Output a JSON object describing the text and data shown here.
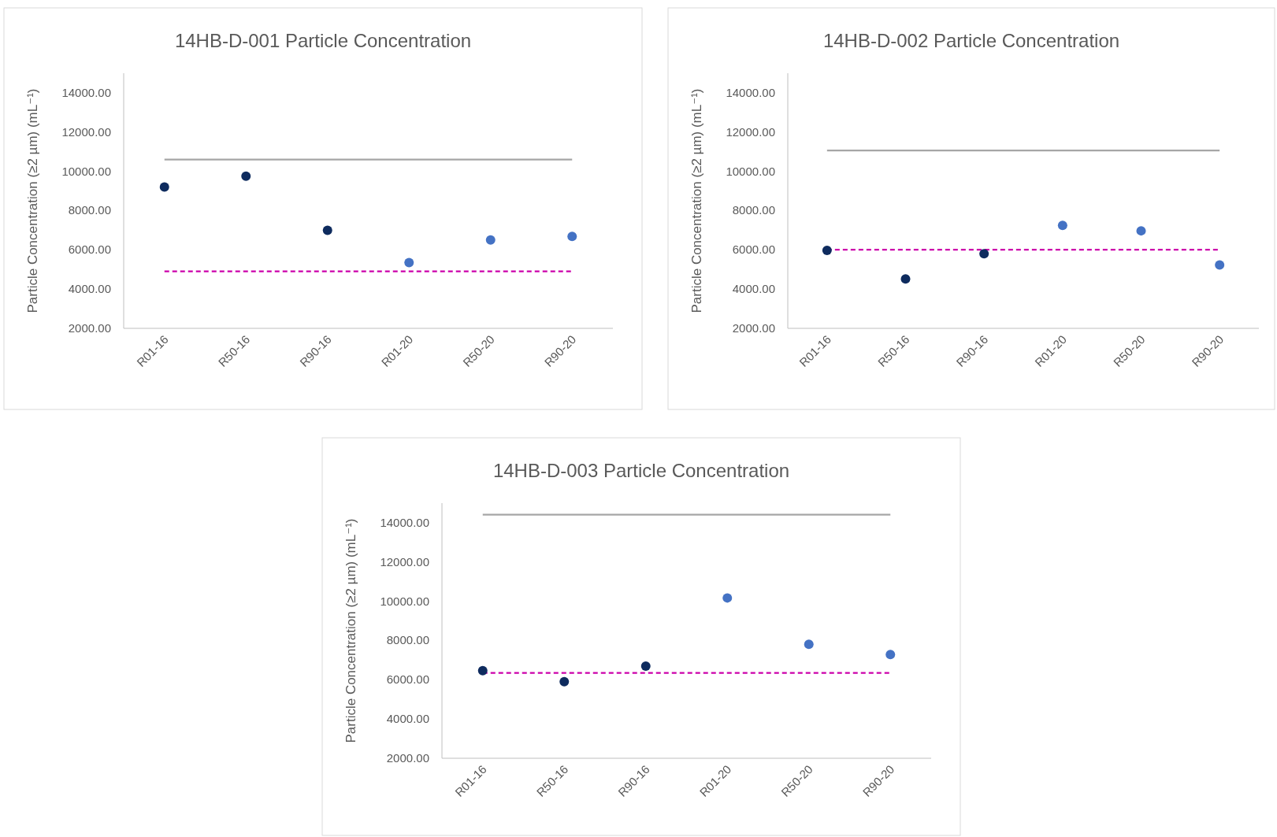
{
  "chart_data": [
    {
      "type": "scatter",
      "title": "14HB-D-001 Particle Concentration",
      "ylabel": "Particle Concentration (≥2 µm) (mL⁻¹)",
      "categories": [
        "R01-16",
        "R50-16",
        "R90-16",
        "R01-20",
        "R50-20",
        "R90-20"
      ],
      "ylim": [
        2000,
        15000
      ],
      "yticks": [
        {
          "value": 2000,
          "label": "2000.00"
        },
        {
          "value": 4000,
          "label": "4000.00"
        },
        {
          "value": 6000,
          "label": "6000.00"
        },
        {
          "value": 8000,
          "label": "8000.00"
        },
        {
          "value": 10000,
          "label": "10000.00"
        },
        {
          "value": 12000,
          "label": "12000.00"
        },
        {
          "value": 14000,
          "label": "14000.00"
        }
      ],
      "grid": false,
      "marker": "circle",
      "series": [
        {
          "color": "#0e2b5e",
          "values": [
            9200,
            9750,
            7000,
            null,
            null,
            null
          ]
        },
        {
          "color": "#4472c4",
          "values": [
            null,
            null,
            null,
            5350,
            6500,
            6680
          ]
        }
      ],
      "ref_lines": [
        {
          "axis": "y",
          "value": 10600,
          "color": "#a6a6a6",
          "line_style": "solid"
        },
        {
          "axis": "y",
          "value": 4900,
          "color": "#cc00aa",
          "line_style": "dashed"
        }
      ]
    },
    {
      "type": "scatter",
      "title": "14HB-D-002 Particle Concentration",
      "ylabel": "Particle Concentration (≥2 µm) (mL⁻¹)",
      "categories": [
        "R01-16",
        "R50-16",
        "R90-16",
        "R01-20",
        "R50-20",
        "R90-20"
      ],
      "ylim": [
        2000,
        15000
      ],
      "yticks": [
        {
          "value": 2000,
          "label": "2000.00"
        },
        {
          "value": 4000,
          "label": "4000.00"
        },
        {
          "value": 6000,
          "label": "6000.00"
        },
        {
          "value": 8000,
          "label": "8000.00"
        },
        {
          "value": 10000,
          "label": "10000.00"
        },
        {
          "value": 12000,
          "label": "12000.00"
        },
        {
          "value": 14000,
          "label": "14000.00"
        }
      ],
      "grid": false,
      "marker": "circle",
      "series": [
        {
          "color": "#0e2b5e",
          "values": [
            5970,
            4520,
            5800,
            null,
            null,
            null
          ]
        },
        {
          "color": "#4472c4",
          "values": [
            null,
            null,
            null,
            7250,
            6970,
            5230
          ]
        }
      ],
      "ref_lines": [
        {
          "axis": "y",
          "value": 11060,
          "color": "#a6a6a6",
          "line_style": "solid"
        },
        {
          "axis": "y",
          "value": 6010,
          "color": "#cc00aa",
          "line_style": "dashed"
        }
      ]
    },
    {
      "type": "scatter",
      "title": "14HB-D-003 Particle Concentration",
      "ylabel": "Particle Concentration (≥2 µm) (mL⁻¹)",
      "categories": [
        "R01-16",
        "R50-16",
        "R90-16",
        "R01-20",
        "R50-20",
        "R90-20"
      ],
      "ylim": [
        2000,
        15000
      ],
      "yticks": [
        {
          "value": 2000,
          "label": "2000.00"
        },
        {
          "value": 4000,
          "label": "4000.00"
        },
        {
          "value": 6000,
          "label": "6000.00"
        },
        {
          "value": 8000,
          "label": "8000.00"
        },
        {
          "value": 10000,
          "label": "10000.00"
        },
        {
          "value": 12000,
          "label": "12000.00"
        },
        {
          "value": 14000,
          "label": "14000.00"
        }
      ],
      "grid": false,
      "marker": "circle",
      "series": [
        {
          "color": "#0e2b5e",
          "values": [
            6460,
            5900,
            6690,
            null,
            null,
            null
          ]
        },
        {
          "color": "#4472c4",
          "values": [
            null,
            null,
            null,
            10170,
            7810,
            7290
          ]
        }
      ],
      "ref_lines": [
        {
          "axis": "y",
          "value": 14410,
          "color": "#a6a6a6",
          "line_style": "solid"
        },
        {
          "axis": "y",
          "value": 6350,
          "color": "#cc00aa",
          "line_style": "dashed"
        }
      ]
    }
  ]
}
